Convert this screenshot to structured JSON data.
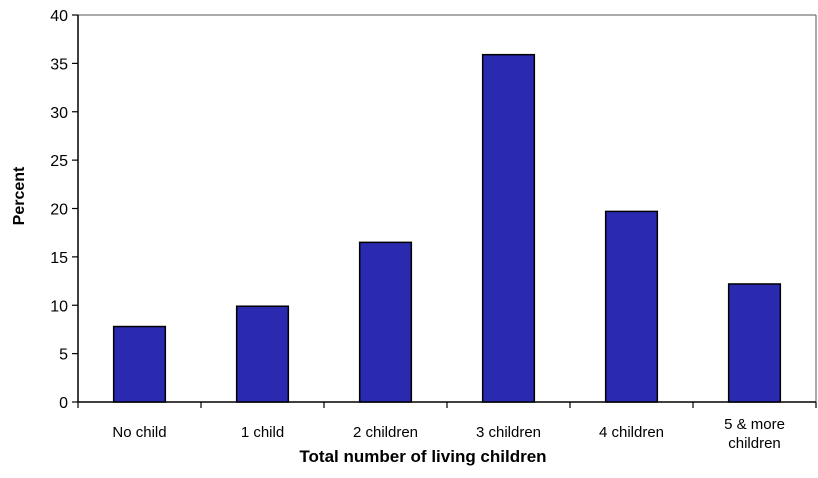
{
  "chart_data": {
    "type": "bar",
    "categories": [
      "No child",
      "1 child",
      "2 children",
      "3 children",
      "4 children",
      "5 & more\nchildren"
    ],
    "values": [
      7.8,
      9.9,
      16.5,
      35.9,
      19.7,
      12.2
    ],
    "xlabel": "Total number of living children",
    "ylabel": "Percent",
    "ylim": [
      0,
      40
    ],
    "yticks": [
      0,
      5,
      10,
      15,
      20,
      25,
      30,
      35,
      40
    ],
    "grid": false,
    "legend": "none",
    "bar_color": "#2a2ab0",
    "bar_outline": "#000000"
  }
}
